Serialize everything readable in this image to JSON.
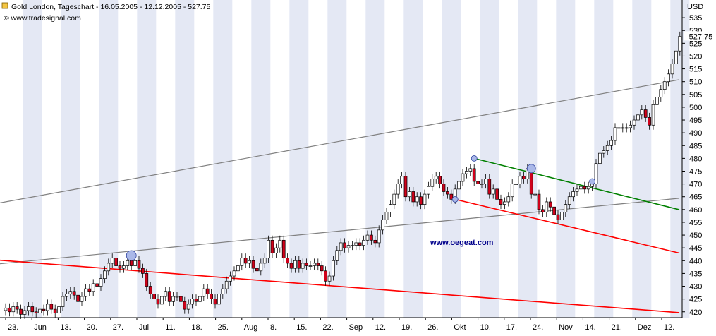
{
  "header": {
    "title": "Gold London, Tageschart - 16.05.2005 - 12.12.2005 - 527.75",
    "source": "© www.tradesignal.com"
  },
  "watermark": "www.oegeat.com",
  "colors": {
    "bull": "#ffffff",
    "bear": "#d0021b",
    "band": "#e4e8f4",
    "green_line": "#008000",
    "red_line": "#ff0000",
    "grey_line": "#808080"
  },
  "chart_data": {
    "type": "candlestick",
    "title": "Gold London, Tageschart - 16.05.2005 - 12.12.2005 - 527.75",
    "ylabel": "USD",
    "ylim": [
      418,
      540
    ],
    "y_ticks": [
      420,
      425,
      430,
      435,
      440,
      445,
      450,
      455,
      460,
      465,
      470,
      475,
      480,
      485,
      490,
      495,
      500,
      505,
      510,
      515,
      520,
      525,
      530,
      535
    ],
    "last_value": "527.75",
    "x_tick_labels": [
      "23.",
      "Jun",
      "13.",
      "20.",
      "27.",
      "Jul",
      "11.",
      "18.",
      "25.",
      "Aug",
      "8.",
      "15.",
      "22.",
      "Sep",
      "12.",
      "19.",
      "26.",
      "Okt",
      "10.",
      "17.",
      "24.",
      "Nov",
      "14.",
      "21.",
      "Dez",
      "12."
    ],
    "series": [
      {
        "close": 421.5
      },
      {
        "close": 420
      },
      {
        "close": 422
      },
      {
        "close": 421
      },
      {
        "close": 419
      },
      {
        "close": 420.5
      },
      {
        "close": 422
      },
      {
        "close": 420
      },
      {
        "close": 419.5
      },
      {
        "close": 421
      },
      {
        "close": 420.5
      },
      {
        "close": 423
      },
      {
        "close": 421
      },
      {
        "close": 419.5
      },
      {
        "close": 422
      },
      {
        "close": 426
      },
      {
        "close": 427
      },
      {
        "close": 428
      },
      {
        "close": 426.5
      },
      {
        "close": 424
      },
      {
        "close": 426
      },
      {
        "close": 429
      },
      {
        "close": 428
      },
      {
        "close": 431
      },
      {
        "close": 430
      },
      {
        "close": 433
      },
      {
        "close": 436
      },
      {
        "close": 439
      },
      {
        "close": 441
      },
      {
        "close": 438
      },
      {
        "close": 437
      },
      {
        "close": 438
      },
      {
        "close": 440
      },
      {
        "close": 438
      },
      {
        "close": 440
      },
      {
        "close": 437
      },
      {
        "close": 435
      },
      {
        "close": 430
      },
      {
        "close": 427
      },
      {
        "close": 425
      },
      {
        "close": 423
      },
      {
        "close": 426
      },
      {
        "close": 428
      },
      {
        "close": 424
      },
      {
        "close": 426
      },
      {
        "close": 426
      },
      {
        "close": 424
      },
      {
        "close": 421
      },
      {
        "close": 423
      },
      {
        "close": 425
      },
      {
        "close": 424
      },
      {
        "close": 426
      },
      {
        "close": 429
      },
      {
        "close": 427
      },
      {
        "close": 425
      },
      {
        "close": 423
      },
      {
        "close": 427
      },
      {
        "close": 429
      },
      {
        "close": 432
      },
      {
        "close": 434
      },
      {
        "close": 436
      },
      {
        "close": 438
      },
      {
        "close": 441
      },
      {
        "close": 439
      },
      {
        "close": 440
      },
      {
        "close": 437
      },
      {
        "close": 436
      },
      {
        "close": 439
      },
      {
        "close": 441
      },
      {
        "close": 448
      },
      {
        "close": 443
      },
      {
        "close": 445
      },
      {
        "close": 448
      },
      {
        "close": 441
      },
      {
        "close": 439
      },
      {
        "close": 437
      },
      {
        "close": 440
      },
      {
        "close": 437
      },
      {
        "close": 439
      },
      {
        "close": 438
      },
      {
        "close": 438
      },
      {
        "close": 439
      },
      {
        "close": 438
      },
      {
        "close": 436
      },
      {
        "close": 432
      },
      {
        "close": 434
      },
      {
        "close": 440
      },
      {
        "close": 444
      },
      {
        "close": 447
      },
      {
        "close": 445
      },
      {
        "close": 446
      },
      {
        "close": 446
      },
      {
        "close": 447
      },
      {
        "close": 446
      },
      {
        "close": 448
      },
      {
        "close": 450
      },
      {
        "close": 448
      },
      {
        "close": 447
      },
      {
        "close": 452
      },
      {
        "close": 456
      },
      {
        "close": 459
      },
      {
        "close": 462
      },
      {
        "close": 466
      },
      {
        "close": 470
      },
      {
        "close": 473
      },
      {
        "close": 465
      },
      {
        "close": 467
      },
      {
        "close": 463
      },
      {
        "close": 465
      },
      {
        "close": 462
      },
      {
        "close": 466
      },
      {
        "close": 469
      },
      {
        "close": 472
      },
      {
        "close": 473
      },
      {
        "close": 470
      },
      {
        "close": 467
      },
      {
        "close": 466
      },
      {
        "close": 464
      },
      {
        "close": 468
      },
      {
        "close": 471
      },
      {
        "close": 474
      },
      {
        "close": 475
      },
      {
        "close": 476
      },
      {
        "close": 471
      },
      {
        "close": 470
      },
      {
        "close": 470
      },
      {
        "close": 472
      },
      {
        "close": 466
      },
      {
        "close": 468
      },
      {
        "close": 464
      },
      {
        "close": 462
      },
      {
        "close": 463
      },
      {
        "close": 465
      },
      {
        "close": 470
      },
      {
        "close": 470
      },
      {
        "close": 473
      },
      {
        "close": 472
      },
      {
        "close": 476
      },
      {
        "close": 466
      },
      {
        "close": 466
      },
      {
        "close": 460
      },
      {
        "close": 459
      },
      {
        "close": 463
      },
      {
        "close": 461
      },
      {
        "close": 458
      },
      {
        "close": 456
      },
      {
        "close": 459
      },
      {
        "close": 462
      },
      {
        "close": 465
      },
      {
        "close": 467
      },
      {
        "close": 468
      },
      {
        "close": 469
      },
      {
        "close": 468
      },
      {
        "close": 469
      },
      {
        "close": 470
      },
      {
        "close": 478
      },
      {
        "close": 482
      },
      {
        "close": 483
      },
      {
        "close": 485
      },
      {
        "close": 487
      },
      {
        "close": 492
      },
      {
        "close": 492
      },
      {
        "close": 492
      },
      {
        "close": 492
      },
      {
        "close": 493
      },
      {
        "close": 495
      },
      {
        "close": 497
      },
      {
        "close": 499
      },
      {
        "close": 496
      },
      {
        "close": 493
      },
      {
        "close": 501
      },
      {
        "close": 504
      },
      {
        "close": 507
      },
      {
        "close": 510
      },
      {
        "close": 513
      },
      {
        "close": 517
      },
      {
        "close": 522
      },
      {
        "close": 527.75
      }
    ],
    "trendlines": [
      {
        "color": "grey",
        "from": [
          0,
          463
        ],
        "to": [
          174,
          510
        ]
      },
      {
        "color": "grey",
        "from": [
          0,
          439
        ],
        "to": [
          174,
          464
        ]
      },
      {
        "color": "red",
        "from": [
          0,
          440
        ],
        "to": [
          174,
          420
        ]
      },
      {
        "color": "green",
        "from": [
          123,
          480
        ],
        "to": [
          174,
          461
        ]
      },
      {
        "color": "red",
        "from": [
          118,
          464
        ],
        "to": [
          174,
          444
        ]
      }
    ]
  }
}
